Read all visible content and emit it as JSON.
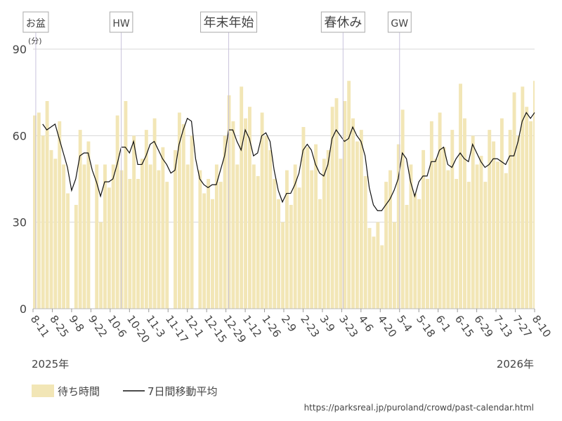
{
  "chart_data": {
    "type": "bar-line",
    "unit_label": "(分)",
    "x": [
      0,
      3,
      6,
      9,
      12,
      15,
      18,
      21,
      24,
      27,
      30,
      33,
      36,
      39,
      42,
      45,
      48,
      51,
      54,
      57,
      60,
      63,
      66,
      69,
      72,
      75,
      78,
      81,
      84,
      87,
      90,
      93,
      96,
      99,
      102,
      105,
      108,
      111,
      114,
      117,
      120,
      123,
      126,
      129,
      132,
      135,
      138,
      141,
      144,
      147,
      150,
      153,
      156,
      159,
      162,
      165,
      168,
      171,
      174,
      177,
      180,
      183,
      186,
      189,
      192,
      195,
      198,
      201,
      204,
      207,
      210,
      213,
      216,
      219,
      222,
      225,
      228,
      231,
      234,
      237,
      240,
      243,
      246,
      249,
      252,
      255,
      258,
      261,
      264,
      267,
      270,
      273,
      276,
      279,
      282,
      285,
      288,
      291,
      294,
      297,
      300,
      303,
      306,
      309,
      312,
      315,
      318,
      321,
      324,
      327,
      330,
      333,
      336,
      339,
      342,
      345,
      348,
      351,
      354,
      357,
      360,
      363
    ],
    "series": [
      {
        "name": "待ち時間",
        "color": "#f2e6b6",
        "values": [
          67,
          68,
          60,
          72,
          55,
          52,
          65,
          50,
          40,
          0,
          36,
          62,
          50,
          58,
          0,
          50,
          30,
          50,
          42,
          50,
          67,
          48,
          72,
          45,
          60,
          45,
          52,
          62,
          50,
          66,
          48,
          56,
          44,
          0,
          55,
          68,
          64,
          50,
          60,
          0,
          48,
          40,
          45,
          38,
          50,
          44,
          60,
          74,
          65,
          50,
          77,
          66,
          70,
          50,
          46,
          68,
          60,
          55,
          45,
          38,
          30,
          48,
          36,
          50,
          42,
          63,
          56,
          48,
          57,
          38,
          52,
          55,
          70,
          73,
          52,
          72,
          79,
          66,
          58,
          62,
          46,
          28,
          25,
          30,
          22,
          44,
          48,
          30,
          57,
          69,
          36,
          50,
          40,
          38,
          55,
          45,
          65,
          52,
          68,
          56,
          48,
          62,
          45,
          78,
          66,
          44,
          60,
          50,
          53,
          44,
          62,
          58,
          51,
          66,
          47,
          62,
          75,
          60,
          77,
          70,
          65,
          79
        ]
      },
      {
        "name": "7日間移動平均",
        "color": "#111111",
        "values": [
          null,
          null,
          64,
          62,
          63,
          64,
          59,
          54,
          49,
          41,
          45,
          53,
          54,
          54,
          48,
          44,
          39,
          44,
          44,
          45,
          50,
          56,
          56,
          54,
          58,
          50,
          50,
          53,
          57,
          58,
          55,
          52,
          50,
          47,
          48,
          57,
          62,
          66,
          65,
          52,
          45,
          43,
          42,
          43,
          43,
          48,
          53,
          62,
          62,
          58,
          55,
          62,
          59,
          53,
          54,
          60,
          61,
          58,
          48,
          41,
          37,
          40,
          40,
          43,
          47,
          55,
          57,
          55,
          50,
          47,
          46,
          50,
          59,
          62,
          60,
          58,
          59,
          63,
          60,
          58,
          53,
          42,
          36,
          34,
          34,
          36,
          38,
          41,
          45,
          54,
          52,
          44,
          39,
          44,
          46,
          46,
          51,
          51,
          55,
          56,
          50,
          49,
          52,
          54,
          52,
          51,
          57,
          54,
          51,
          49,
          50,
          52,
          52,
          51,
          50,
          53,
          53,
          58,
          65,
          68,
          66,
          68
        ]
      }
    ],
    "xlim": [
      0,
      364
    ],
    "xticks": [
      {
        "value": 0,
        "label": "8-11"
      },
      {
        "value": 14,
        "label": "8-25"
      },
      {
        "value": 28,
        "label": "9-8"
      },
      {
        "value": 42,
        "label": "9-22"
      },
      {
        "value": 56,
        "label": "10-6"
      },
      {
        "value": 70,
        "label": "10-20"
      },
      {
        "value": 84,
        "label": "11-3"
      },
      {
        "value": 98,
        "label": "11-17"
      },
      {
        "value": 112,
        "label": "12-1"
      },
      {
        "value": 126,
        "label": "12-15"
      },
      {
        "value": 140,
        "label": "12-29"
      },
      {
        "value": 154,
        "label": "1-12"
      },
      {
        "value": 168,
        "label": "1-26"
      },
      {
        "value": 182,
        "label": "2-9"
      },
      {
        "value": 196,
        "label": "2-23"
      },
      {
        "value": 210,
        "label": "3-9"
      },
      {
        "value": 224,
        "label": "3-23"
      },
      {
        "value": 238,
        "label": "4-6"
      },
      {
        "value": 252,
        "label": "4-20"
      },
      {
        "value": 266,
        "label": "5-4"
      },
      {
        "value": 280,
        "label": "5-18"
      },
      {
        "value": 294,
        "label": "6-1"
      },
      {
        "value": 308,
        "label": "6-15"
      },
      {
        "value": 322,
        "label": "6-29"
      },
      {
        "value": 336,
        "label": "7-13"
      },
      {
        "value": 350,
        "label": "7-27"
      },
      {
        "value": 364,
        "label": "8-10"
      }
    ],
    "ylim": [
      0,
      90
    ],
    "yticks": [
      0,
      30,
      60,
      90
    ],
    "grid": true,
    "events": [
      {
        "label": "お盆",
        "x": 2
      },
      {
        "label": "HW",
        "x": 64
      },
      {
        "label": "年末年始",
        "x": 142
      },
      {
        "label": "春休み",
        "x": 225
      },
      {
        "label": "GW",
        "x": 266
      }
    ],
    "year_labels": [
      "2025年",
      "2026年"
    ],
    "source": "https://parksreal.jp/puroland/crowd/past-calendar.html"
  }
}
